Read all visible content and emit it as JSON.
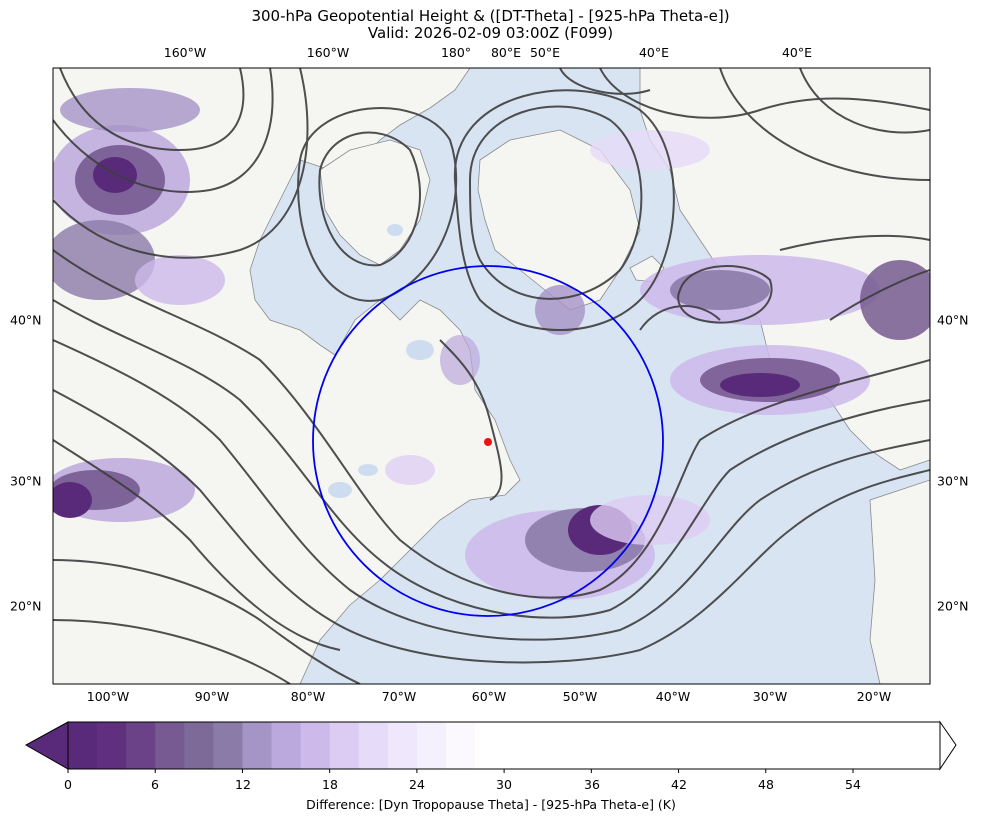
{
  "title_line1": "300-hPa Geopotential Height & ([DT-Theta] - [925-hPa Theta-e])",
  "title_line2": "Valid: 2026-02-09 03:00Z (F099)",
  "top_lon_labels": [
    "160°W",
    "160°W",
    "180°",
    "80°E",
    "50°E",
    "40°E",
    "40°E"
  ],
  "bottom_lon_labels": [
    "100°W",
    "90°W",
    "80°W",
    "70°W",
    "60°W",
    "50°W",
    "40°W",
    "30°W",
    "20°W"
  ],
  "left_lat_labels": [
    "40°N",
    "30°N",
    "20°N"
  ],
  "right_lat_labels": [
    "40°N",
    "30°N",
    "20°N"
  ],
  "colorbar": {
    "label": "Difference: [Dyn Tropopause Theta] - [925-hPa Theta-e] (K)",
    "ticks": [
      "0",
      "6",
      "12",
      "18",
      "24",
      "30",
      "36",
      "42",
      "48",
      "54"
    ],
    "extend": "both",
    "colors": [
      "#5a2a7a",
      "#60307f",
      "#6b4287",
      "#775a91",
      "#7e6a98",
      "#8b7ba8",
      "#a594c6",
      "#bba8dc",
      "#cdb9ea",
      "#dccbf3",
      "#e6dbf8",
      "#efe7fb",
      "#f5f0fd",
      "#fbf9fe",
      "#ffffff"
    ]
  },
  "map_colors": {
    "ocean": "#d9e4f3",
    "land": "#f5f5f2",
    "lake": "#cddcef",
    "contour": "#3d3d3d",
    "circle": "#0000ee",
    "marker": "#ee1111"
  }
}
